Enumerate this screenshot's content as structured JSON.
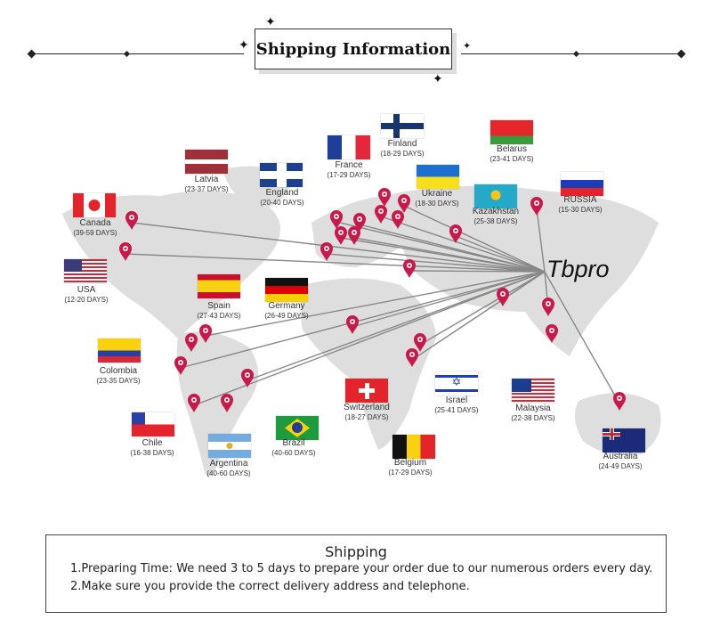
{
  "header": {
    "title": "Shipping Information"
  },
  "brand": "Tbpro",
  "colors": {
    "pin": "#c8194a",
    "map": "#dcdcdc",
    "route": "#888888"
  },
  "countries": [
    {
      "name": "Latvia",
      "days": "(23-37 DAYS)",
      "flag": "latvia"
    },
    {
      "name": "England",
      "days": "(20-40 DAYS)",
      "flag": "uk"
    },
    {
      "name": "France",
      "days": "(17-29 DAYS)",
      "flag": "france"
    },
    {
      "name": "Finland",
      "days": "(18-29 DAYS)",
      "flag": "finland"
    },
    {
      "name": "Belarus",
      "days": "(23-41 DAYS)",
      "flag": "belarus"
    },
    {
      "name": "Ukraine",
      "days": "(18-30 DAYS)",
      "flag": "ukraine"
    },
    {
      "name": "Kazakhstan",
      "days": "(25-38 DAYS)",
      "flag": "kazakhstan"
    },
    {
      "name": "RUSSIA",
      "days": "(15-30 DAYS)",
      "flag": "russia"
    },
    {
      "name": "Canada",
      "days": "(39-59 DAYS)",
      "flag": "canada"
    },
    {
      "name": "USA",
      "days": "(12-20 DAYS)",
      "flag": "usa"
    },
    {
      "name": "Spain",
      "days": "(27-43 DAYS)",
      "flag": "spain"
    },
    {
      "name": "Germany",
      "days": "(26-49 DAYS)",
      "flag": "germany"
    },
    {
      "name": "Colombia",
      "days": "(23-35 DAYS)",
      "flag": "colombia"
    },
    {
      "name": "Switzerland",
      "days": "(18-27 DAYS)",
      "flag": "switzerland"
    },
    {
      "name": "Israel",
      "days": "(25-41 DAYS)",
      "flag": "israel"
    },
    {
      "name": "Malaysia",
      "days": "(22-38 DAYS)",
      "flag": "malaysia"
    },
    {
      "name": "Chile",
      "days": "(16-38 DAYS)",
      "flag": "chile"
    },
    {
      "name": "Argentina",
      "days": "(40-60 DAYS)",
      "flag": "argentina"
    },
    {
      "name": "Brazil",
      "days": "(40-60 DAYS)",
      "flag": "brazil"
    },
    {
      "name": "Belgium",
      "days": "(17-29 DAYS)",
      "flag": "belgium"
    },
    {
      "name": "Australia",
      "days": "(24-49 DAYS)",
      "flag": "australia"
    }
  ],
  "info": {
    "heading": "Shipping",
    "lines": [
      "1.Preparing Time: We need 3 to 5 days to prepare your order due to our numerous orders every day.",
      "2.Make sure you provide the correct delivery address and telephone."
    ]
  }
}
